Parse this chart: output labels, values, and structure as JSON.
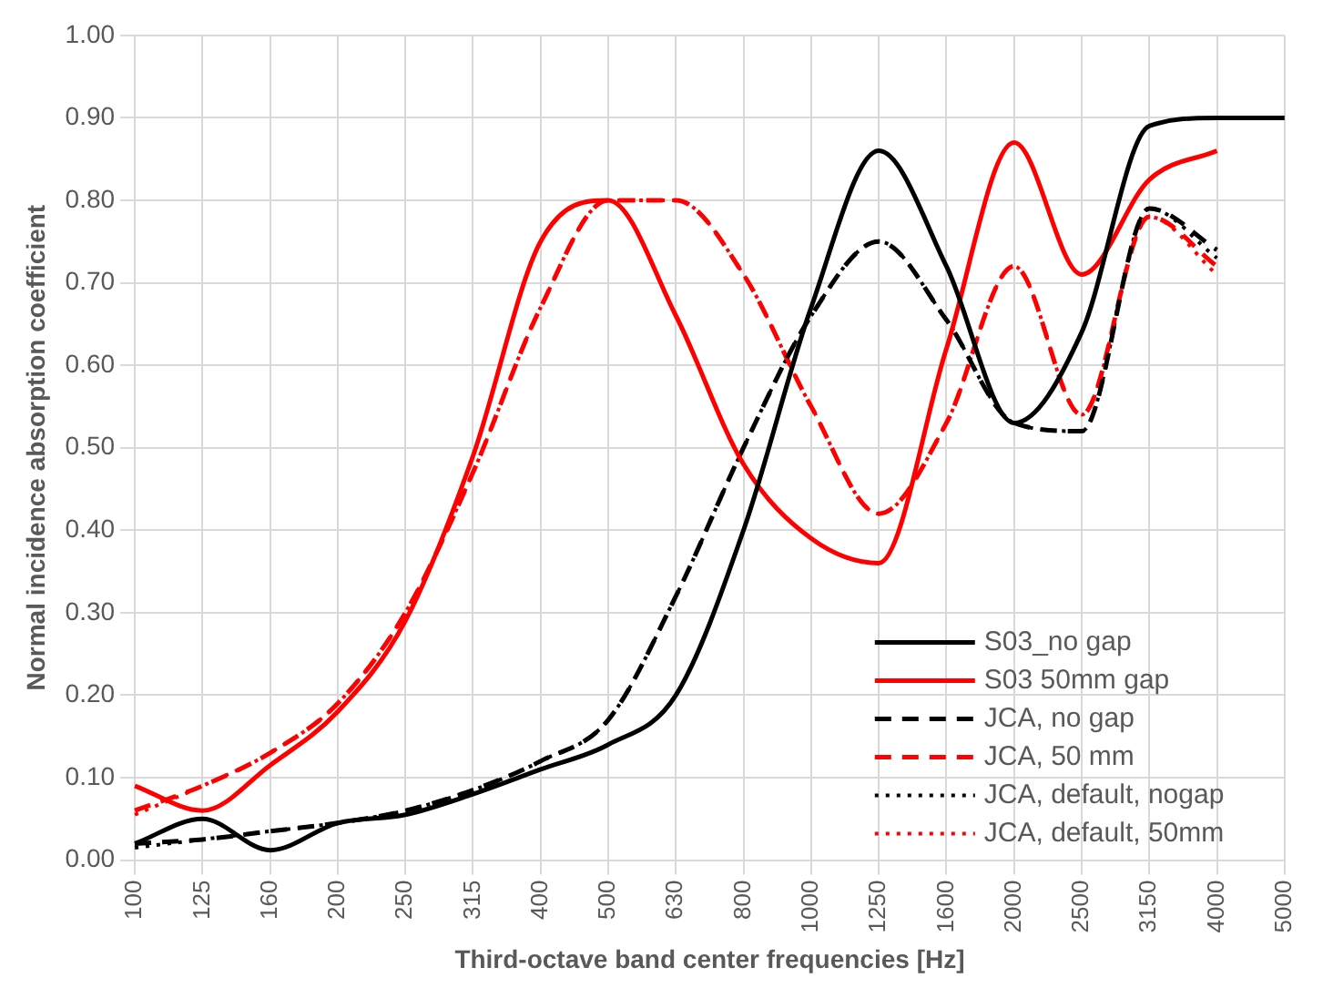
{
  "chart_data": {
    "type": "line",
    "xlabel": "Third-octave band center frequencies [Hz]",
    "ylabel": "Normal incidence absorption coefficient",
    "categories": [
      "100",
      "125",
      "160",
      "200",
      "250",
      "315",
      "400",
      "500",
      "630",
      "800",
      "1000",
      "1250",
      "1600",
      "2000",
      "2500",
      "3150",
      "4000",
      "5000"
    ],
    "ylim": [
      0,
      1
    ],
    "yticks": [
      {
        "value": 0,
        "label": "0.00"
      },
      {
        "value": 0.1,
        "label": "0.10"
      },
      {
        "value": 0.2,
        "label": "0.20"
      },
      {
        "value": 0.3,
        "label": "0.30"
      },
      {
        "value": 0.4,
        "label": "0.40"
      },
      {
        "value": 0.5,
        "label": "0.50"
      },
      {
        "value": 0.6,
        "label": "0.60"
      },
      {
        "value": 0.7,
        "label": "0.70"
      },
      {
        "value": 0.8,
        "label": "0.80"
      },
      {
        "value": 0.9,
        "label": "0.90"
      },
      {
        "value": 1,
        "label": "1.00"
      }
    ],
    "grid": true,
    "legend": "bottom right",
    "marker": "none",
    "series": [
      {
        "name": "S03_no gap",
        "color": "#000000",
        "line_style": "solid",
        "values": [
          0.02,
          0.05,
          0.012,
          0.045,
          0.055,
          0.08,
          0.11,
          0.14,
          0.2,
          0.4,
          0.67,
          0.86,
          0.72,
          0.53,
          0.64,
          0.89,
          0.9,
          0.9
        ]
      },
      {
        "name": "S03 50mm gap",
        "color": "#ff0000",
        "line_style": "solid",
        "values": [
          0.09,
          0.06,
          0.115,
          0.18,
          0.29,
          0.49,
          0.75,
          0.8,
          0.66,
          0.48,
          0.39,
          0.36,
          0.62,
          0.87,
          0.71,
          0.825,
          0.86,
          null
        ]
      },
      {
        "name": "JCA, no gap",
        "color": "#000000",
        "line_style": "dashed",
        "values": [
          0.02,
          0.025,
          0.035,
          0.045,
          0.06,
          0.085,
          0.12,
          0.17,
          0.32,
          0.5,
          0.66,
          0.75,
          0.655,
          0.53,
          0.52,
          0.79,
          0.74,
          null
        ]
      },
      {
        "name": "JCA, 50 mm",
        "color": "#ff0000",
        "line_style": "dashed",
        "values": [
          0.06,
          0.09,
          0.13,
          0.19,
          0.3,
          0.47,
          0.67,
          0.8,
          0.8,
          0.71,
          0.55,
          0.42,
          0.53,
          0.72,
          0.54,
          0.78,
          0.72,
          null
        ]
      },
      {
        "name": "JCA, default, nogap",
        "color": "#000000",
        "line_style": "dotted",
        "values": [
          0.015,
          0.025,
          0.035,
          0.045,
          0.06,
          0.085,
          0.12,
          0.17,
          0.32,
          0.5,
          0.66,
          0.75,
          0.655,
          0.53,
          0.52,
          0.79,
          0.73,
          null
        ]
      },
      {
        "name": "JCA, default, 50mm",
        "color": "#ff0000",
        "line_style": "dotted",
        "values": [
          0.055,
          0.09,
          0.13,
          0.19,
          0.3,
          0.47,
          0.67,
          0.8,
          0.8,
          0.71,
          0.55,
          0.42,
          0.53,
          0.72,
          0.54,
          0.78,
          0.71,
          null
        ]
      }
    ]
  }
}
